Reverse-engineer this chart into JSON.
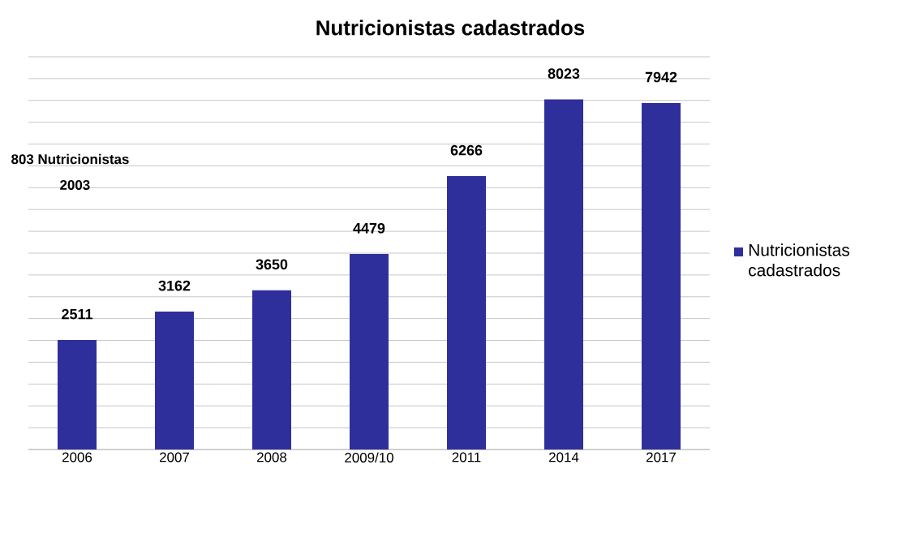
{
  "chart_data": {
    "type": "bar",
    "title": "Nutricionistas cadastrados",
    "categories": [
      "2006",
      "2007",
      "2008",
      "2009/10",
      "2011",
      "2014",
      "2017"
    ],
    "series": [
      {
        "name": "Nutricionistas cadastrados",
        "color": "#2f2f9c",
        "values": [
          2511,
          3162,
          3650,
          4479,
          6266,
          8023,
          7942
        ]
      }
    ],
    "ylim": [
      0,
      9000
    ],
    "grid": "y",
    "legend": "right",
    "data_labels": true,
    "tick_labels": "x",
    "annotations": [
      "803 Nutricionistas",
      "2003"
    ]
  }
}
